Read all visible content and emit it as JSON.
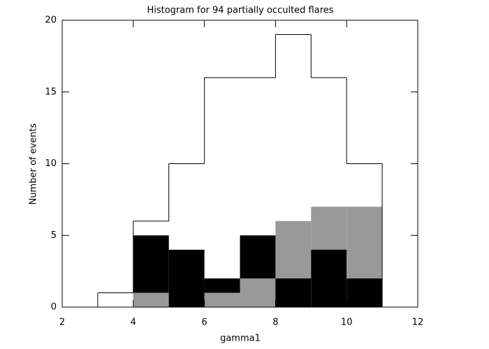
{
  "chart_data": {
    "type": "histogram",
    "title": "Histogram for 94 partially occulted flares",
    "xlabel": "gamma1",
    "ylabel": "Number of events",
    "bins": [
      3,
      4,
      5,
      6,
      7,
      8,
      9,
      10,
      11
    ],
    "series": [
      {
        "color": "#000000",
        "style": "outline",
        "values": [
          1,
          6,
          10,
          16,
          16,
          19,
          16,
          10
        ]
      },
      {
        "color": "#999999",
        "style": "filled",
        "values": [
          0,
          1,
          0,
          1,
          2,
          6,
          7,
          7
        ]
      },
      {
        "color": "#000000",
        "style": "filled",
        "values": [
          0,
          5,
          4,
          2,
          5,
          2,
          4,
          2
        ]
      }
    ],
    "xlim": [
      2,
      12
    ],
    "xticks": [
      2,
      4,
      6,
      8,
      10,
      12
    ],
    "ylim": [
      0,
      20
    ],
    "yticks": [
      0,
      5,
      10,
      15,
      20
    ]
  }
}
